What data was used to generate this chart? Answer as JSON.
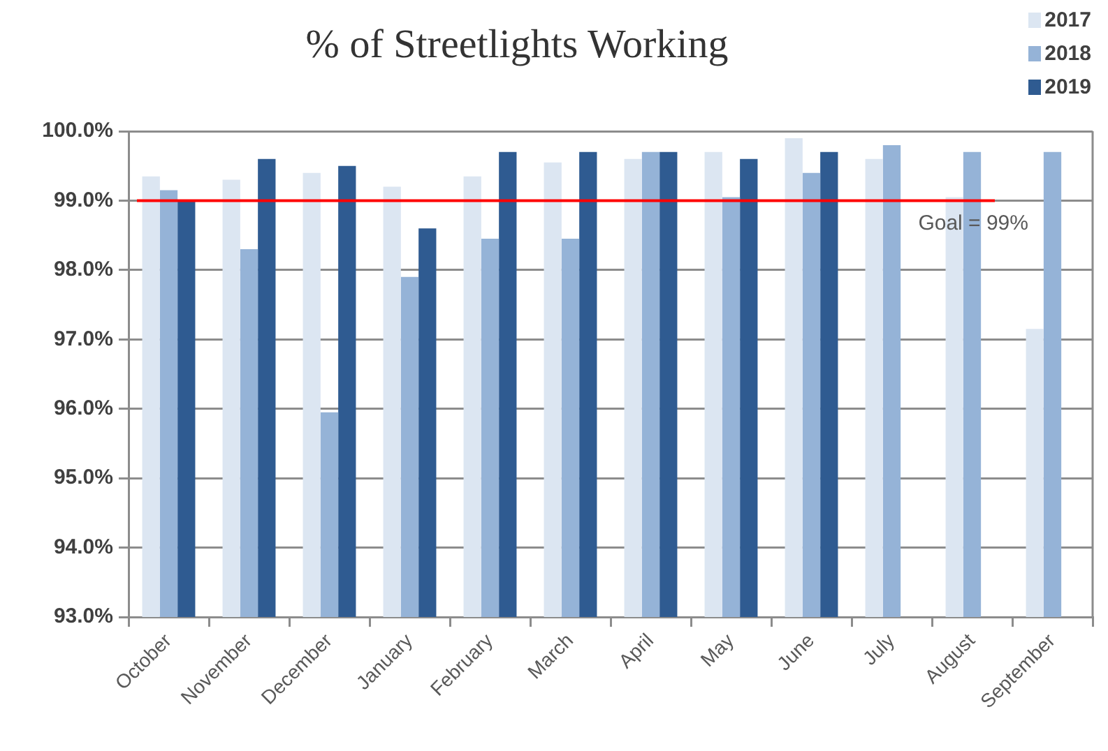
{
  "chart_data": {
    "type": "bar",
    "title": "% of Streetlights Working",
    "categories": [
      "October",
      "November",
      "December",
      "January",
      "February",
      "March",
      "April",
      "May",
      "June",
      "July",
      "August",
      "September"
    ],
    "series": [
      {
        "name": "2017",
        "color": "#dce6f2",
        "values": [
          99.35,
          99.3,
          99.4,
          99.2,
          99.35,
          99.55,
          99.6,
          99.7,
          99.9,
          99.6,
          99.05,
          97.15
        ]
      },
      {
        "name": "2018",
        "color": "#95b3d7",
        "values": [
          99.15,
          98.3,
          95.95,
          97.9,
          98.45,
          98.45,
          99.7,
          99.05,
          99.4,
          99.8,
          99.7,
          99.7
        ]
      },
      {
        "name": "2019",
        "color": "#2f5b91",
        "values": [
          99.0,
          99.6,
          99.5,
          98.6,
          99.7,
          99.7,
          99.7,
          99.6,
          99.7,
          null,
          null,
          null
        ]
      }
    ],
    "ylim": [
      93,
      100
    ],
    "yticks": [
      {
        "value": 93,
        "label": "93.0%"
      },
      {
        "value": 94,
        "label": "94.0%"
      },
      {
        "value": 95,
        "label": "95.0%"
      },
      {
        "value": 96,
        "label": "96.0%"
      },
      {
        "value": 97,
        "label": "97.0%"
      },
      {
        "value": 98,
        "label": "98.0%"
      },
      {
        "value": 99,
        "label": "99.0%"
      },
      {
        "value": 100,
        "label": "100.0%"
      }
    ],
    "grid": "y",
    "legend": "top right",
    "ref_lines": [
      {
        "axis": "y",
        "value": 99,
        "label": "Goal = 99%",
        "color": "#ff0000"
      }
    ]
  }
}
